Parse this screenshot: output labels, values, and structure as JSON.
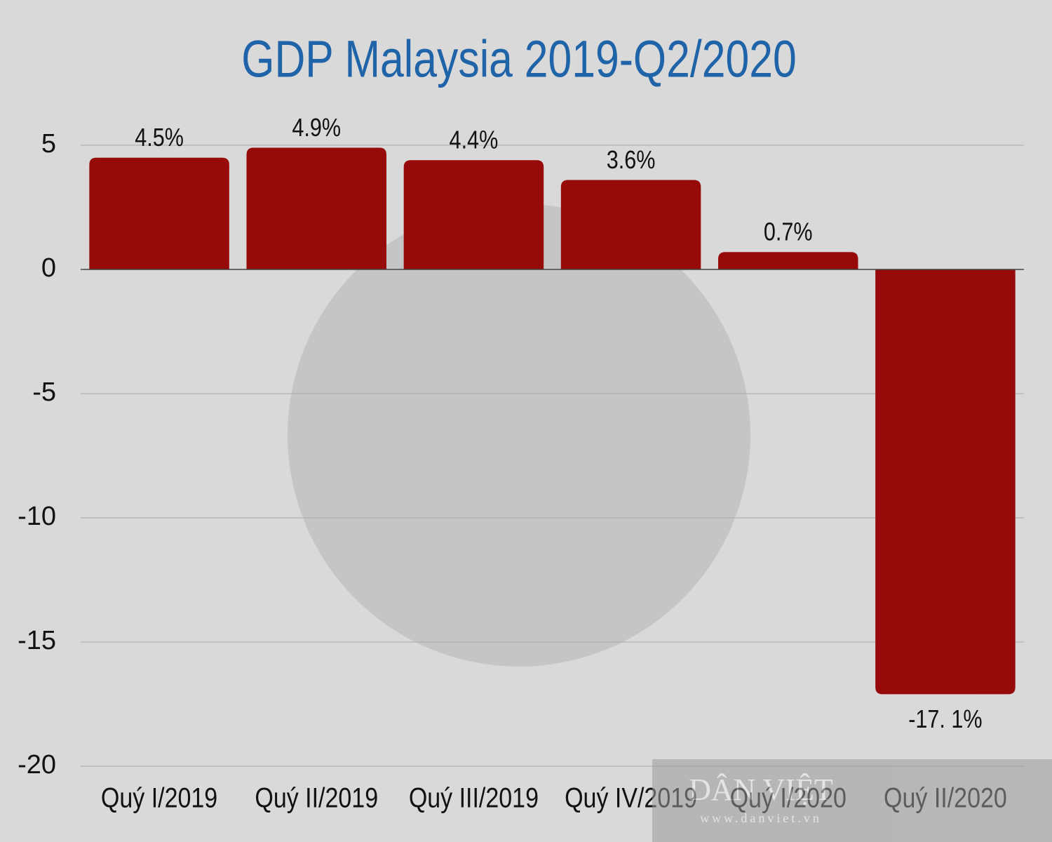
{
  "chart_data": {
    "type": "bar",
    "title": "GDP Malaysia 2019-Q2/2020",
    "categories": [
      "Quý I/2019",
      "Quý II/2019",
      "Quý III/2019",
      "Quý IV/2019",
      "Quý I/2020",
      "Quý II/2020"
    ],
    "values": [
      4.5,
      4.9,
      4.4,
      3.6,
      0.7,
      -17.1
    ],
    "value_labels": [
      "4.5%",
      "4.9%",
      "4.4%",
      "3.6%",
      "0.7%",
      "-17. 1%"
    ],
    "color": "#970a0a",
    "ylim": [
      -20,
      5
    ],
    "yticks": [
      -20,
      -15,
      -10,
      -5,
      0,
      5
    ],
    "grid": true,
    "watermark": {
      "name": "DÂN VIỆT",
      "url": "www.danviet.vn"
    }
  }
}
